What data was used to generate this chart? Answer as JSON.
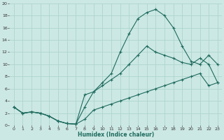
{
  "xlabel": "Humidex (Indice chaleur)",
  "bg_color": "#cce8e4",
  "line_color": "#1e6b5e",
  "grid_color": "#aed4ce",
  "xlim": [
    -0.5,
    23.5
  ],
  "ylim": [
    0,
    20
  ],
  "xticks": [
    0,
    1,
    2,
    3,
    4,
    5,
    6,
    7,
    8,
    9,
    10,
    11,
    12,
    13,
    14,
    15,
    16,
    17,
    18,
    19,
    20,
    21,
    22,
    23
  ],
  "yticks": [
    0,
    2,
    4,
    6,
    8,
    10,
    12,
    14,
    16,
    18,
    20
  ],
  "line1_x": [
    0,
    1,
    2,
    3,
    4,
    5,
    6,
    7,
    8,
    9,
    10,
    11,
    12,
    13,
    14,
    15,
    16,
    17,
    18,
    19,
    20,
    21,
    22,
    23
  ],
  "line1_y": [
    3,
    2,
    2.2,
    2,
    1.5,
    0.7,
    0.3,
    0.2,
    3.0,
    5.5,
    6.5,
    7.5,
    8.5,
    10,
    11.5,
    13,
    12,
    11.5,
    11,
    10.3,
    10,
    11,
    10,
    7
  ],
  "line2_x": [
    0,
    1,
    2,
    3,
    4,
    5,
    6,
    7,
    8,
    9,
    10,
    11,
    12,
    13,
    14,
    15,
    16,
    17,
    18,
    19,
    20,
    21,
    22,
    23
  ],
  "line2_y": [
    3,
    2,
    2.2,
    2,
    1.5,
    0.7,
    0.3,
    0.2,
    5,
    5.5,
    7,
    8.5,
    12,
    15,
    17.5,
    18.5,
    19,
    18,
    16,
    13,
    10.5,
    10,
    11.5,
    10
  ],
  "line3_x": [
    0,
    1,
    2,
    3,
    4,
    5,
    6,
    7,
    8,
    9,
    10,
    11,
    12,
    13,
    14,
    15,
    16,
    17,
    18,
    19,
    20,
    21,
    22,
    23
  ],
  "line3_y": [
    3,
    2,
    2.2,
    2,
    1.5,
    0.7,
    0.3,
    0.2,
    1.0,
    2.5,
    3.0,
    3.5,
    4,
    4.5,
    5,
    5.5,
    6,
    6.5,
    7,
    7.5,
    8,
    8.5,
    6.5,
    7
  ]
}
